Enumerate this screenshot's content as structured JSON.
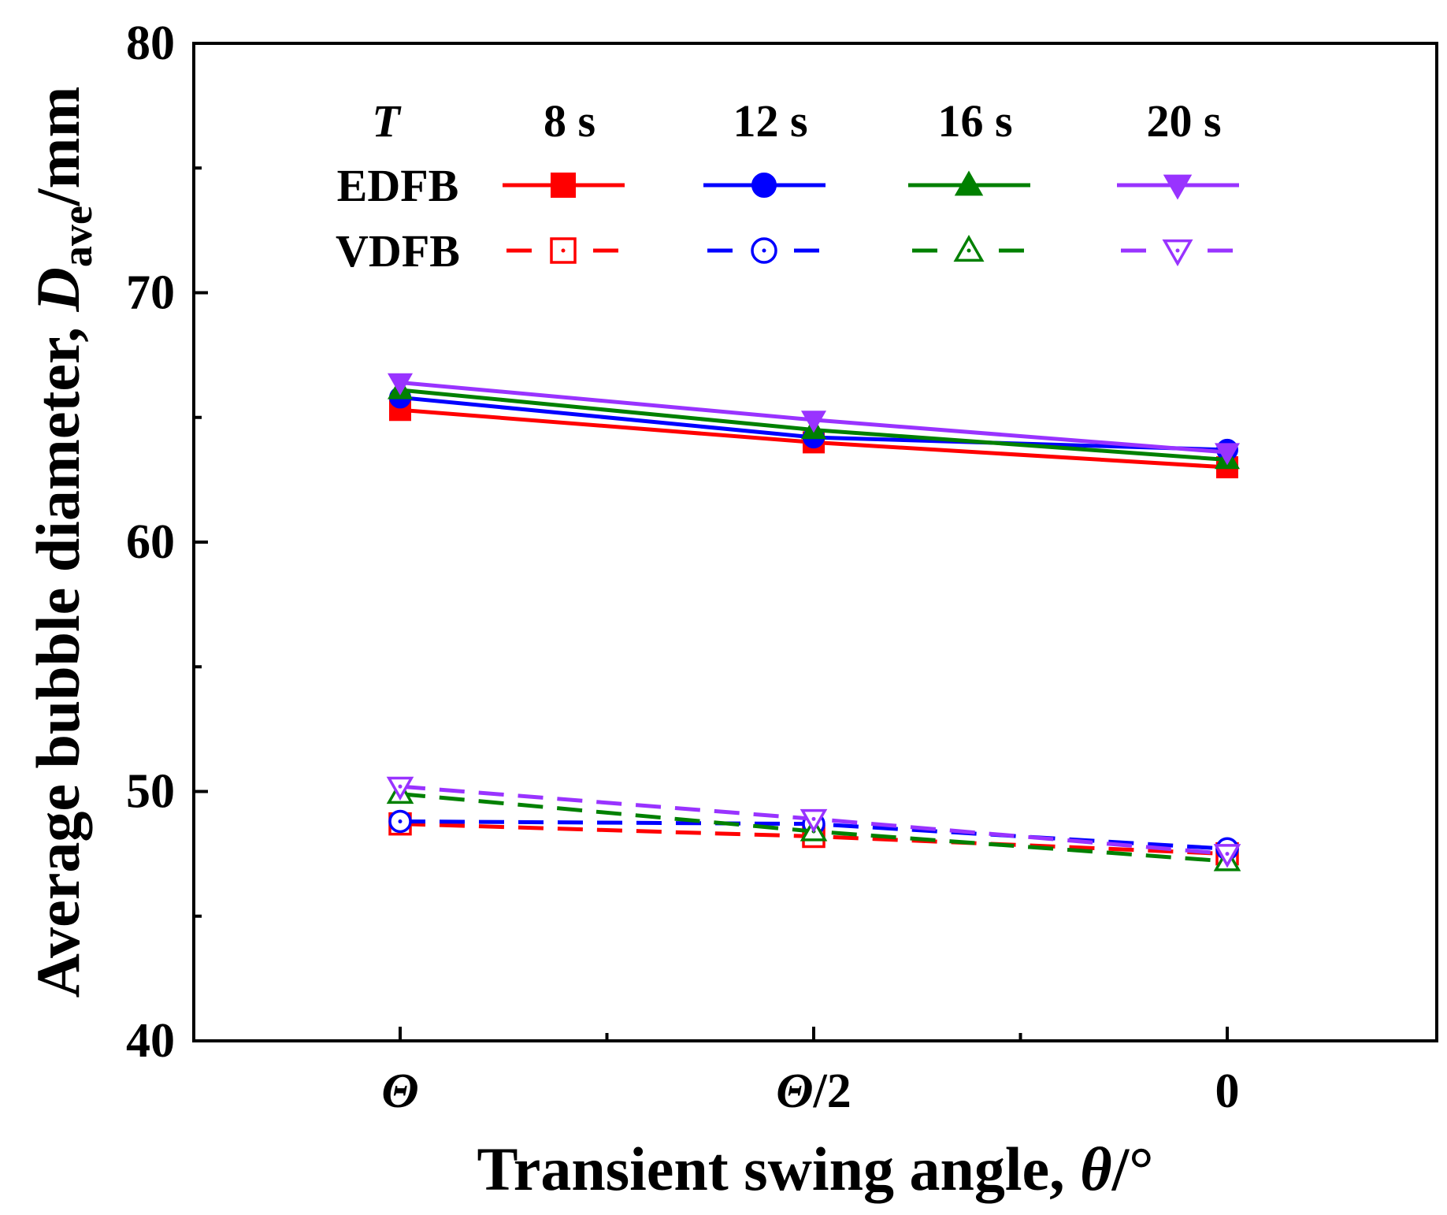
{
  "chart_data": {
    "type": "line",
    "title": "",
    "xlabel": "Transient swing angle, θ/°",
    "ylabel": "Average bubble diameter, D_ave/mm",
    "ylabel_parts": {
      "main": "Average bubble diameter, ",
      "symbol": "D",
      "subscript": "ave",
      "unit": "/mm"
    },
    "xlabel_parts": {
      "main": "Transient swing angle, ",
      "symbol": "θ",
      "unit": "/°"
    },
    "categories": [
      "Θ",
      "Θ/2",
      "0"
    ],
    "category_labels": [
      {
        "symbol": "Θ",
        "rest": ""
      },
      {
        "symbol": "Θ",
        "rest": "/2"
      },
      {
        "symbol": "",
        "rest": "0"
      }
    ],
    "ylim": [
      40,
      80
    ],
    "yticks": [
      40,
      50,
      60,
      70,
      80
    ],
    "grid": false,
    "legend": {
      "placement": "top",
      "header_label": "T",
      "row_labels": [
        "EDFB",
        "VDFB"
      ],
      "column_labels": [
        "8 s",
        "12 s",
        "16 s",
        "20 s"
      ]
    },
    "series": [
      {
        "name": "EDFB 8 s",
        "group": "EDFB",
        "period": "8 s",
        "color": "#ff0000",
        "marker": "square",
        "filled": true,
        "dashed": false,
        "values": [
          65.3,
          64.0,
          63.0
        ]
      },
      {
        "name": "EDFB 12 s",
        "group": "EDFB",
        "period": "12 s",
        "color": "#0000ff",
        "marker": "circle",
        "filled": true,
        "dashed": false,
        "values": [
          65.8,
          64.2,
          63.7
        ]
      },
      {
        "name": "EDFB 16 s",
        "group": "EDFB",
        "period": "16 s",
        "color": "#008000",
        "marker": "triangle-up",
        "filled": true,
        "dashed": false,
        "values": [
          66.1,
          64.5,
          63.3
        ]
      },
      {
        "name": "EDFB 20 s",
        "group": "EDFB",
        "period": "20 s",
        "color": "#9933ff",
        "marker": "triangle-down",
        "filled": true,
        "dashed": false,
        "values": [
          66.4,
          64.9,
          63.6
        ]
      },
      {
        "name": "VDFB 8 s",
        "group": "VDFB",
        "period": "8 s",
        "color": "#ff0000",
        "marker": "square",
        "filled": false,
        "dashed": true,
        "values": [
          48.7,
          48.2,
          47.5
        ]
      },
      {
        "name": "VDFB 12 s",
        "group": "VDFB",
        "period": "12 s",
        "color": "#0000ff",
        "marker": "circle",
        "filled": false,
        "dashed": true,
        "values": [
          48.8,
          48.7,
          47.7
        ]
      },
      {
        "name": "VDFB 16 s",
        "group": "VDFB",
        "period": "16 s",
        "color": "#008000",
        "marker": "triangle-up",
        "filled": false,
        "dashed": true,
        "values": [
          49.9,
          48.4,
          47.2
        ]
      },
      {
        "name": "VDFB 20 s",
        "group": "VDFB",
        "period": "20 s",
        "color": "#9933ff",
        "marker": "triangle-down",
        "filled": false,
        "dashed": true,
        "values": [
          50.2,
          48.9,
          47.5
        ]
      }
    ]
  }
}
